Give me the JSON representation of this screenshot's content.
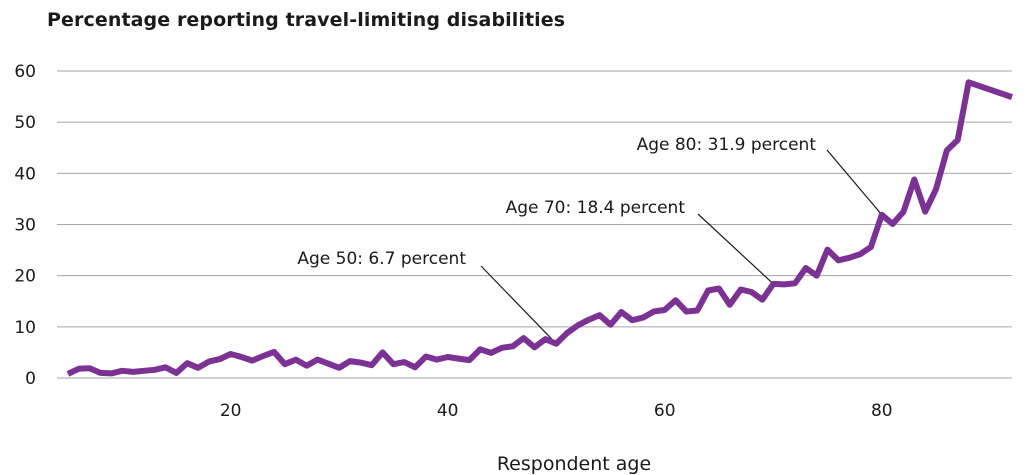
{
  "chart_data": {
    "type": "line",
    "title": "Percentage reporting travel-limiting disabilities",
    "xlabel": "Respondent age",
    "ylabel": "",
    "xlim": [
      4,
      92
    ],
    "ylim": [
      0,
      60
    ],
    "yticks": [
      0,
      10,
      20,
      30,
      40,
      50,
      60
    ],
    "xticks": [
      20,
      40,
      60,
      80
    ],
    "grid": "horizontal",
    "line_color": "#7b3294",
    "series": [
      {
        "x": [
          5,
          6,
          7,
          8,
          9,
          10,
          11,
          12,
          13,
          14,
          15,
          16,
          17,
          18,
          19,
          20,
          21,
          22,
          23,
          24,
          25,
          26,
          27,
          28,
          29,
          30,
          31,
          32,
          33,
          34,
          35,
          36,
          37,
          38,
          39,
          40,
          41,
          42,
          43,
          44,
          45,
          46,
          47,
          48,
          49,
          50,
          51,
          52,
          53,
          54,
          55,
          56,
          57,
          58,
          59,
          60,
          61,
          62,
          63,
          64,
          65,
          66,
          67,
          68,
          69,
          70,
          71,
          72,
          73,
          74,
          75,
          76,
          77,
          78,
          79,
          80,
          81,
          82,
          83,
          84,
          85,
          86,
          87,
          88,
          92
        ],
        "y": [
          0.8,
          1.8,
          1.9,
          1.0,
          0.9,
          1.4,
          1.2,
          1.4,
          1.6,
          2.1,
          1.0,
          2.9,
          2.0,
          3.2,
          3.7,
          4.7,
          4.1,
          3.4,
          4.3,
          5.1,
          2.7,
          3.6,
          2.4,
          3.6,
          2.8,
          2.0,
          3.3,
          3.0,
          2.5,
          5.0,
          2.7,
          3.1,
          2.1,
          4.2,
          3.6,
          4.1,
          3.8,
          3.5,
          5.6,
          4.9,
          5.9,
          6.2,
          7.8,
          6.0,
          7.6,
          6.7,
          8.8,
          10.3,
          11.4,
          12.3,
          10.4,
          12.9,
          11.3,
          11.8,
          13.0,
          13.3,
          15.2,
          13.0,
          13.2,
          17.1,
          17.5,
          14.3,
          17.3,
          16.8,
          15.3,
          18.4,
          18.3,
          18.5,
          21.5,
          20.0,
          25.1,
          23.0,
          23.5,
          24.2,
          25.6,
          31.9,
          30.1,
          32.5,
          38.8,
          32.5,
          36.9,
          44.5,
          46.5,
          57.8,
          54.9
        ]
      }
    ],
    "annotations": [
      {
        "text": "Age 50: 6.7 percent",
        "x": 50,
        "y": 6.7
      },
      {
        "text": "Age 70: 18.4 percent",
        "x": 70,
        "y": 18.4
      },
      {
        "text": "Age 80: 31.9 percent",
        "x": 80,
        "y": 31.9
      }
    ]
  }
}
